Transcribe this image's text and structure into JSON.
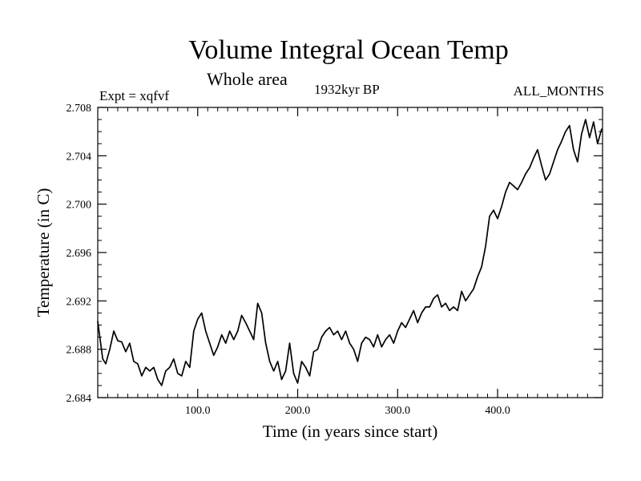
{
  "chart_data": {
    "type": "line",
    "title": "Volume Integral Ocean Temp",
    "subtitle": "Whole area",
    "experiment_label": "Expt = xqfvf",
    "period_label": "1932kyr BP",
    "months_label": "ALL_MONTHS",
    "xlabel": "Time (in years since start)",
    "ylabel": "Temperature (in C)",
    "xlim": [
      0,
      505
    ],
    "ylim": [
      2.684,
      2.708
    ],
    "xticks": [
      100,
      200,
      300,
      400
    ],
    "xtick_labels": [
      "100.0",
      "200.0",
      "300.0",
      "400.0"
    ],
    "yticks": [
      2.684,
      2.688,
      2.692,
      2.696,
      2.7,
      2.704,
      2.708
    ],
    "ytick_labels": [
      "2.684",
      "2.688",
      "2.692",
      "2.696",
      "2.700",
      "2.704",
      "2.708"
    ],
    "grid": false,
    "series": [
      {
        "name": "Volume integral ocean temperature",
        "x": [
          0,
          5,
          8,
          12,
          16,
          20,
          24,
          28,
          32,
          36,
          40,
          44,
          48,
          52,
          56,
          60,
          64,
          68,
          72,
          76,
          80,
          84,
          88,
          92,
          96,
          100,
          104,
          108,
          112,
          116,
          120,
          124,
          128,
          132,
          136,
          140,
          144,
          148,
          152,
          156,
          160,
          164,
          168,
          172,
          176,
          180,
          184,
          188,
          192,
          196,
          200,
          204,
          208,
          212,
          216,
          220,
          224,
          228,
          232,
          236,
          240,
          244,
          248,
          252,
          256,
          260,
          264,
          268,
          272,
          276,
          280,
          284,
          288,
          292,
          296,
          300,
          304,
          308,
          312,
          316,
          320,
          324,
          328,
          332,
          336,
          340,
          344,
          348,
          352,
          356,
          360,
          364,
          368,
          372,
          376,
          380,
          384,
          388,
          392,
          396,
          400,
          404,
          408,
          412,
          416,
          420,
          424,
          428,
          432,
          436,
          440,
          444,
          448,
          452,
          456,
          460,
          464,
          468,
          472,
          476,
          480,
          484,
          488,
          492,
          496,
          500,
          504
        ],
        "values": [
          2.6903,
          2.6872,
          2.6868,
          2.688,
          2.6895,
          2.6887,
          2.6886,
          2.6878,
          2.6885,
          2.687,
          2.6868,
          2.6858,
          2.6865,
          2.6862,
          2.6865,
          2.6855,
          2.685,
          2.6862,
          2.6865,
          2.6872,
          2.686,
          2.6858,
          2.687,
          2.6865,
          2.6895,
          2.6905,
          2.691,
          2.6895,
          2.6885,
          2.6875,
          2.6882,
          2.6892,
          2.6885,
          2.6895,
          2.6888,
          2.6895,
          2.6908,
          2.6902,
          2.6895,
          2.6888,
          2.6918,
          2.691,
          2.6885,
          2.687,
          2.6862,
          2.687,
          2.6855,
          2.6862,
          2.6885,
          2.686,
          2.6852,
          2.687,
          2.6865,
          2.6858,
          2.6878,
          2.688,
          2.689,
          2.6895,
          2.6898,
          2.6892,
          2.6895,
          2.6888,
          2.6895,
          2.6885,
          2.688,
          2.687,
          2.6885,
          2.689,
          2.6888,
          2.6882,
          2.6892,
          2.6882,
          2.6888,
          2.6892,
          2.6885,
          2.6895,
          2.6902,
          2.6898,
          2.6905,
          2.6912,
          2.6902,
          2.691,
          2.6915,
          2.6915,
          2.6922,
          2.6925,
          2.6915,
          2.6918,
          2.6912,
          2.6915,
          2.6912,
          2.6928,
          2.692,
          2.6925,
          2.693,
          2.694,
          2.6948,
          2.6965,
          2.699,
          2.6995,
          2.6988,
          2.6998,
          2.701,
          2.7018,
          2.7015,
          2.7012,
          2.7018,
          2.7025,
          2.703,
          2.7038,
          2.7045,
          2.7032,
          2.702,
          2.7025,
          2.7035,
          2.7045,
          2.7052,
          2.706,
          2.7065,
          2.7045,
          2.7035,
          2.7058,
          2.707,
          2.7055,
          2.7068,
          2.705,
          2.7062
        ]
      }
    ]
  }
}
